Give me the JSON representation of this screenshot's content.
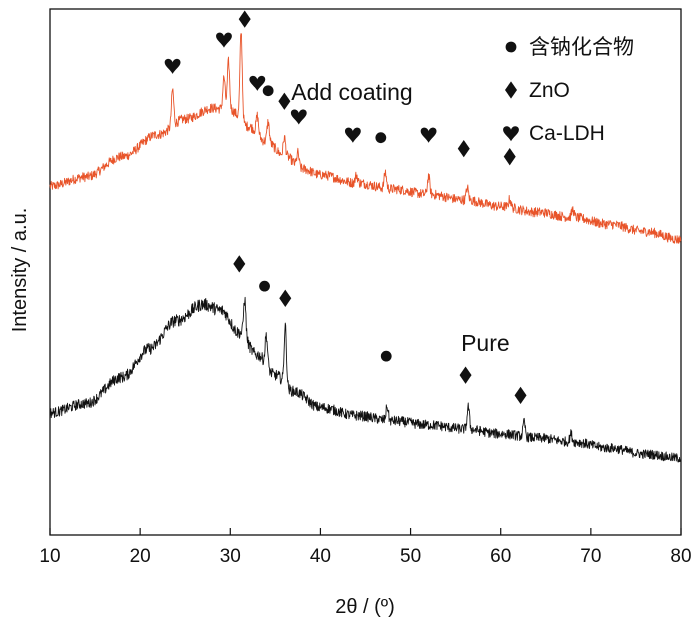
{
  "chart_data": {
    "type": "line",
    "xlabel": "2θ / (º)",
    "ylabel": "Intensity / a.u.",
    "xlim": [
      10,
      80
    ],
    "xticks": [
      "10",
      "20",
      "30",
      "40",
      "50",
      "60",
      "70",
      "80"
    ],
    "grid": false,
    "legend_position": "top-right",
    "legend": [
      {
        "symbol": "circle",
        "label": "含钠化合物"
      },
      {
        "symbol": "diamond",
        "label": "ZnO"
      },
      {
        "symbol": "heart",
        "label": "Ca-LDH"
      }
    ],
    "series": [
      {
        "name": "Add coating",
        "color": "#e8542a",
        "baseline_x": [
          10,
          14,
          18,
          22,
          25,
          28,
          30,
          32,
          34,
          36,
          38,
          40,
          44,
          48,
          52,
          56,
          60,
          64,
          68,
          72,
          76,
          80
        ],
        "baseline_y": [
          8.62,
          8.85,
          9.35,
          9.9,
          10.28,
          10.55,
          10.5,
          10.1,
          9.72,
          9.38,
          9.05,
          8.9,
          8.7,
          8.55,
          8.42,
          8.28,
          8.12,
          7.98,
          7.85,
          7.68,
          7.5,
          7.3
        ],
        "peaks": [
          {
            "x": 23.6,
            "height": 0.9
          },
          {
            "x": 29.3,
            "height": 0.8
          },
          {
            "x": 29.8,
            "height": 1.2
          },
          {
            "x": 31.2,
            "height": 2.2
          },
          {
            "x": 33.0,
            "height": 0.45
          },
          {
            "x": 34.2,
            "height": 0.5
          },
          {
            "x": 36.0,
            "height": 0.45
          },
          {
            "x": 37.5,
            "height": 0.35
          },
          {
            "x": 44.0,
            "height": 0.2
          },
          {
            "x": 47.2,
            "height": 0.4
          },
          {
            "x": 52.0,
            "height": 0.45
          },
          {
            "x": 56.3,
            "height": 0.3
          },
          {
            "x": 61.0,
            "height": 0.2
          },
          {
            "x": 68.0,
            "height": 0.2
          }
        ],
        "noise": 0.12
      },
      {
        "name": "Pure",
        "color": "#111111",
        "baseline_x": [
          10,
          14,
          18,
          21,
          24,
          27,
          29,
          31,
          33,
          35,
          37,
          40,
          44,
          48,
          52,
          56,
          60,
          64,
          68,
          72,
          76,
          80
        ],
        "baseline_y": [
          3.02,
          3.25,
          3.9,
          4.6,
          5.3,
          5.7,
          5.55,
          5.0,
          4.45,
          3.95,
          3.55,
          3.15,
          2.95,
          2.82,
          2.72,
          2.62,
          2.5,
          2.4,
          2.3,
          2.15,
          2.0,
          1.9
        ],
        "peaks": [
          {
            "x": 31.6,
            "height": 0.95
          },
          {
            "x": 34.0,
            "height": 0.75
          },
          {
            "x": 36.1,
            "height": 1.45
          },
          {
            "x": 47.4,
            "height": 0.35
          },
          {
            "x": 56.4,
            "height": 0.55
          },
          {
            "x": 62.6,
            "height": 0.35
          },
          {
            "x": 67.8,
            "height": 0.2
          }
        ],
        "noise": 0.16
      }
    ],
    "marker_annotations": [
      {
        "series": "Add coating",
        "symbol": "heart",
        "x": 23.6,
        "y": 11.6
      },
      {
        "series": "Add coating",
        "symbol": "heart",
        "x": 29.3,
        "y": 12.25
      },
      {
        "series": "Add coating",
        "symbol": "diamond",
        "x": 31.6,
        "y": 12.75
      },
      {
        "series": "Add coating",
        "symbol": "heart",
        "x": 33.0,
        "y": 11.18
      },
      {
        "series": "Add coating",
        "symbol": "circle",
        "x": 34.2,
        "y": 10.98
      },
      {
        "series": "Add coating",
        "symbol": "diamond",
        "x": 36.0,
        "y": 10.72
      },
      {
        "series": "Add coating",
        "symbol": "heart",
        "x": 37.6,
        "y": 10.35
      },
      {
        "series": "Add coating",
        "symbol": "heart",
        "x": 43.6,
        "y": 9.9
      },
      {
        "series": "Add coating",
        "symbol": "circle",
        "x": 46.7,
        "y": 9.82
      },
      {
        "series": "Add coating",
        "symbol": "heart",
        "x": 52.0,
        "y": 9.9
      },
      {
        "series": "Add coating",
        "symbol": "diamond",
        "x": 55.9,
        "y": 9.55
      },
      {
        "series": "Add coating",
        "symbol": "diamond",
        "x": 61.0,
        "y": 9.35
      },
      {
        "series": "Pure",
        "symbol": "diamond",
        "x": 31.0,
        "y": 6.7
      },
      {
        "series": "Pure",
        "symbol": "circle",
        "x": 33.8,
        "y": 6.15
      },
      {
        "series": "Pure",
        "symbol": "diamond",
        "x": 36.1,
        "y": 5.85
      },
      {
        "series": "Pure",
        "symbol": "circle",
        "x": 47.3,
        "y": 4.42
      },
      {
        "series": "Pure",
        "symbol": "diamond",
        "x": 56.1,
        "y": 3.95
      },
      {
        "series": "Pure",
        "symbol": "diamond",
        "x": 62.2,
        "y": 3.45
      }
    ],
    "curve_labels": [
      {
        "text": "Add coating",
        "x": 43.5,
        "y": 10.75
      },
      {
        "text": "Pure",
        "x": 58.3,
        "y": 4.55
      }
    ]
  }
}
